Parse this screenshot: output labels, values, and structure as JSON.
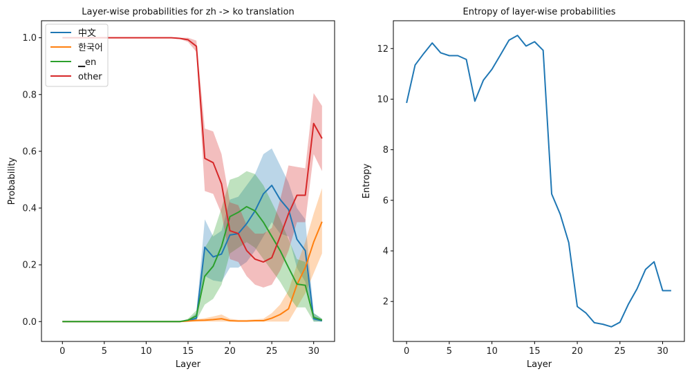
{
  "chart_data": [
    {
      "type": "line",
      "title": "Layer-wise probabilities for zh -> ko translation",
      "xlabel": "Layer",
      "ylabel": "Probability",
      "xlim": [
        -2.5,
        32.5
      ],
      "ylim": [
        -0.07,
        1.06
      ],
      "xticks": [
        0,
        5,
        10,
        15,
        20,
        25,
        30
      ],
      "yticks": [
        0.0,
        0.2,
        0.4,
        0.6,
        0.8,
        1.0
      ],
      "legend_position": "top-left",
      "x": [
        0,
        1,
        2,
        3,
        4,
        5,
        6,
        7,
        8,
        9,
        10,
        11,
        12,
        13,
        14,
        15,
        16,
        17,
        18,
        19,
        20,
        21,
        22,
        23,
        24,
        25,
        26,
        27,
        28,
        29,
        30,
        31
      ],
      "series": [
        {
          "name": "中文",
          "color": "#1f77b4",
          "values": [
            0,
            0,
            0,
            0,
            0,
            0,
            0,
            0,
            0,
            0,
            0,
            0,
            0,
            0,
            0,
            0.003,
            0.012,
            0.262,
            0.228,
            0.238,
            0.305,
            0.31,
            0.345,
            0.39,
            0.45,
            0.48,
            0.43,
            0.395,
            0.29,
            0.25,
            0.01,
            0.003
          ],
          "upper": [
            0,
            0,
            0,
            0,
            0,
            0,
            0,
            0,
            0,
            0,
            0,
            0,
            0,
            0,
            0,
            0.005,
            0.03,
            0.36,
            0.3,
            0.32,
            0.43,
            0.44,
            0.48,
            0.52,
            0.59,
            0.61,
            0.55,
            0.49,
            0.4,
            0.36,
            0.03,
            0.01
          ],
          "lower": [
            0,
            0,
            0,
            0,
            0,
            0,
            0,
            0,
            0,
            0,
            0,
            0,
            0,
            0,
            0,
            0.001,
            0.003,
            0.16,
            0.145,
            0.14,
            0.19,
            0.19,
            0.21,
            0.25,
            0.3,
            0.35,
            0.31,
            0.3,
            0.19,
            0.14,
            0,
            0
          ]
        },
        {
          "name": "한국어",
          "color": "#ff7f0e",
          "values": [
            0,
            0,
            0,
            0,
            0,
            0,
            0,
            0,
            0,
            0,
            0,
            0,
            0,
            0,
            0,
            0.002,
            0.004,
            0.005,
            0.007,
            0.01,
            0.003,
            0.002,
            0.002,
            0.003,
            0.003,
            0.012,
            0.025,
            0.045,
            0.13,
            0.19,
            0.28,
            0.352
          ],
          "upper": [
            0,
            0,
            0,
            0,
            0,
            0,
            0,
            0,
            0,
            0,
            0,
            0,
            0,
            0,
            0,
            0.004,
            0.008,
            0.012,
            0.018,
            0.025,
            0.01,
            0.006,
            0.006,
            0.008,
            0.01,
            0.03,
            0.06,
            0.11,
            0.2,
            0.28,
            0.38,
            0.47
          ],
          "lower": [
            0,
            0,
            0,
            0,
            0,
            0,
            0,
            0,
            0,
            0,
            0,
            0,
            0,
            0,
            0,
            0,
            0,
            0,
            0,
            0,
            0,
            0,
            0,
            0,
            0,
            0,
            0,
            0,
            0.05,
            0.1,
            0.17,
            0.24
          ]
        },
        {
          "name": "▁en",
          "color": "#2ca02c",
          "values": [
            0,
            0,
            0,
            0,
            0,
            0,
            0,
            0,
            0,
            0,
            0,
            0,
            0,
            0,
            0,
            0.005,
            0.02,
            0.16,
            0.195,
            0.265,
            0.37,
            0.385,
            0.405,
            0.39,
            0.35,
            0.3,
            0.25,
            0.19,
            0.132,
            0.128,
            0.015,
            0.005
          ],
          "upper": [
            0,
            0,
            0,
            0,
            0,
            0,
            0,
            0,
            0,
            0,
            0,
            0,
            0,
            0,
            0,
            0.01,
            0.04,
            0.26,
            0.31,
            0.4,
            0.5,
            0.51,
            0.53,
            0.52,
            0.48,
            0.42,
            0.36,
            0.29,
            0.22,
            0.21,
            0.03,
            0.01
          ],
          "lower": [
            0,
            0,
            0,
            0,
            0,
            0,
            0,
            0,
            0,
            0,
            0,
            0,
            0,
            0,
            0,
            0.001,
            0.005,
            0.06,
            0.08,
            0.13,
            0.24,
            0.26,
            0.28,
            0.26,
            0.22,
            0.18,
            0.14,
            0.09,
            0.05,
            0.05,
            0,
            0
          ]
        },
        {
          "name": "other",
          "color": "#d62728",
          "values": [
            1,
            1,
            1,
            1,
            1,
            1,
            1,
            1,
            1,
            1,
            1,
            1,
            1,
            1,
            0.998,
            0.993,
            0.97,
            0.575,
            0.56,
            0.485,
            0.32,
            0.31,
            0.25,
            0.22,
            0.21,
            0.225,
            0.3,
            0.38,
            0.445,
            0.445,
            0.698,
            0.645
          ],
          "upper": [
            1,
            1,
            1,
            1,
            1,
            1,
            1,
            1,
            1,
            1,
            1,
            1,
            1,
            1,
            1,
            1,
            0.99,
            0.68,
            0.67,
            0.59,
            0.42,
            0.41,
            0.34,
            0.31,
            0.31,
            0.33,
            0.43,
            0.55,
            0.545,
            0.54,
            0.805,
            0.76
          ],
          "lower": [
            1,
            1,
            1,
            1,
            1,
            1,
            1,
            1,
            1,
            1,
            1,
            1,
            1,
            1,
            0.996,
            0.985,
            0.95,
            0.46,
            0.45,
            0.38,
            0.22,
            0.21,
            0.16,
            0.13,
            0.12,
            0.13,
            0.18,
            0.25,
            0.35,
            0.35,
            0.59,
            0.53
          ]
        }
      ]
    },
    {
      "type": "line",
      "title": "Entropy of layer-wise probabilities",
      "xlabel": "Layer",
      "ylabel": "Entropy",
      "xlim": [
        -1.55,
        32.55
      ],
      "ylim": [
        0.42,
        13.1
      ],
      "xticks": [
        0,
        5,
        10,
        15,
        20,
        25,
        30
      ],
      "yticks": [
        2,
        4,
        6,
        8,
        10,
        12
      ],
      "x": [
        0,
        1,
        2,
        3,
        4,
        5,
        6,
        7,
        8,
        9,
        10,
        11,
        12,
        13,
        14,
        15,
        16,
        17,
        18,
        19,
        20,
        21,
        22,
        23,
        24,
        25,
        26,
        27,
        28,
        29,
        30,
        31
      ],
      "series": [
        {
          "name": "",
          "color": "#1f77b4",
          "values": [
            9.85,
            11.35,
            11.8,
            12.22,
            11.83,
            11.72,
            11.72,
            11.57,
            9.92,
            10.75,
            11.18,
            11.75,
            12.33,
            12.52,
            12.1,
            12.27,
            11.93,
            6.25,
            5.45,
            4.33,
            1.8,
            1.55,
            1.16,
            1.1,
            1.0,
            1.18,
            1.9,
            2.5,
            3.27,
            3.57,
            2.43,
            2.43
          ]
        }
      ]
    }
  ]
}
